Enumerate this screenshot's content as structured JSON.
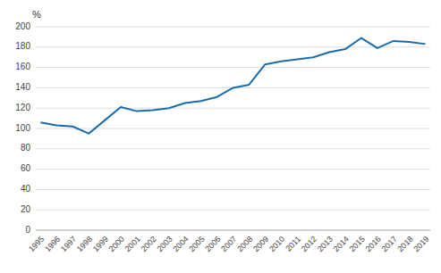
{
  "chart_data": {
    "type": "line",
    "ylabel": "%",
    "x": [
      1995,
      1996,
      1997,
      1998,
      1999,
      2000,
      2001,
      2002,
      2003,
      2004,
      2005,
      2006,
      2007,
      2008,
      2009,
      2010,
      2011,
      2012,
      2013,
      2014,
      2015,
      2016,
      2017,
      2018,
      2019
    ],
    "values": [
      106,
      103,
      102,
      95,
      108,
      121,
      117,
      118,
      120,
      125,
      127,
      131,
      140,
      143,
      163,
      166,
      168,
      170,
      175,
      178,
      189,
      179,
      186,
      185,
      183
    ],
    "color": "#1a6bab",
    "xlim": [
      1994.7,
      2019.3
    ],
    "xticks": [
      1995,
      1996,
      1997,
      1998,
      1999,
      2000,
      2001,
      2002,
      2003,
      2004,
      2005,
      2006,
      2007,
      2008,
      2009,
      2010,
      2011,
      2012,
      2013,
      2014,
      2015,
      2016,
      2017,
      2018,
      2019
    ],
    "ylim": [
      0,
      200
    ],
    "yticks": [
      0,
      20,
      40,
      60,
      80,
      100,
      120,
      140,
      160,
      180,
      200
    ],
    "grid": true
  }
}
